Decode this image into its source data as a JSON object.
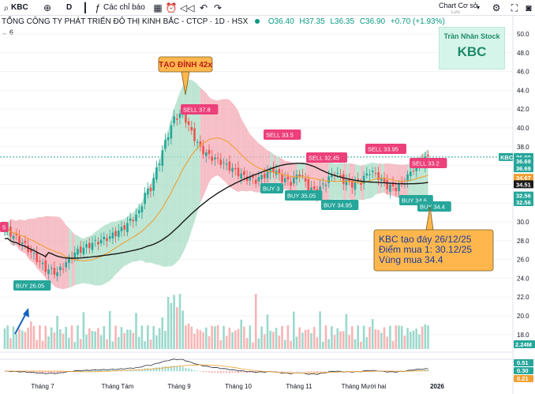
{
  "toolbar": {
    "symbol": "KBC",
    "interval": "D",
    "indicators_label": "Các chỉ báo",
    "layout_name": "Chart Cơ sở",
    "layout_status": "Lưu"
  },
  "legend": {
    "title": "TỔNG CÔNG TY PHÁT TRIỂN ĐÔ THỊ KINH BẮC - CTCP · 1D · HSX",
    "open": "O36.40",
    "high": "H37.35",
    "low": "L36.35",
    "close": "C36.90",
    "change": "+0.70 (+1.93%)",
    "sub_count": "6"
  },
  "watermark": {
    "author": "Trần Nhân Stock",
    "ticker": "KBC"
  },
  "colors": {
    "up": "#26a69a",
    "down": "#ef5350",
    "ma_fast": "#f0a030",
    "ma_slow": "#1a1a1a",
    "band_green": "#a8dcc4",
    "band_red": "#f3a9b4",
    "sell": "#ec407a",
    "buy": "#26a69a",
    "callout": "#ffb74d"
  },
  "chart_data": {
    "type": "candlestick",
    "title": "TỔNG CÔNG TY PHÁT TRIỂN ĐÔ THỊ KINH BẮC - CTCP · 1D · HSX",
    "price_axis": {
      "ticks": [
        18,
        20,
        22,
        24,
        26,
        28,
        30,
        32,
        34,
        36,
        38,
        40,
        42,
        44,
        46,
        48,
        50
      ],
      "range": [
        16.6,
        51.0
      ]
    },
    "time_axis": [
      "Tháng 7",
      "Tháng Tám",
      "Tháng 9",
      "Tháng 10",
      "Tháng 11",
      "Tháng Mười hai",
      "2026"
    ],
    "price_labels": [
      {
        "label": "KBC",
        "value": 36.9,
        "kind": "symbol"
      },
      {
        "label": "36.90",
        "value": 36.9,
        "kind": "last"
      },
      {
        "label": "36.69",
        "value": 36.45,
        "kind": "up"
      },
      {
        "label": "36.69",
        "value": 35.7,
        "kind": "up"
      },
      {
        "label": "34.67",
        "value": 34.7,
        "kind": "ma_fast"
      },
      {
        "label": "34.51",
        "value": 34.0,
        "kind": "ma_slow"
      },
      {
        "label": "32.56",
        "value": 32.8,
        "kind": "up"
      },
      {
        "label": "32.56",
        "value": 32.1,
        "kind": "up"
      }
    ],
    "volume_label": "2.24M",
    "macd_labels": [
      {
        "label": "0.51",
        "kind": "up"
      },
      {
        "label": "0.30",
        "kind": "up"
      },
      {
        "label": "0.21",
        "kind": "ma_fast"
      }
    ],
    "signals": [
      {
        "type": "BUY",
        "price": 26.05,
        "label": "BUY 26.05"
      },
      {
        "type": "SELL",
        "price": 37.8,
        "label": "SELL 37.8"
      },
      {
        "type": "SELL",
        "price": 33.5,
        "label": "SELL 33.5"
      },
      {
        "type": "BUY",
        "price": 35.05,
        "label": "BUY 35.05"
      },
      {
        "type": "BUY",
        "price": null,
        "label": "BUY 3"
      },
      {
        "type": "SELL",
        "price": 32.45,
        "label": "SELL 32.45"
      },
      {
        "type": "BUY",
        "price": 34.95,
        "label": "BUY 34.95"
      },
      {
        "type": "SELL",
        "price": 33.95,
        "label": "SELL 33.95"
      },
      {
        "type": "SELL",
        "price": 33.2,
        "label": "SELL 33.2"
      },
      {
        "type": "BUY",
        "price": 34.6,
        "label": "BUY 34.6"
      },
      {
        "type": "BUY",
        "price": 34.4,
        "label": "BUY 34.4"
      },
      {
        "type": "SELL",
        "price": null,
        "label": "5"
      }
    ],
    "annotations": [
      {
        "text": "TẠO ĐỈNH 42x"
      },
      {
        "lines": [
          "KBC tạo đáy 26/12/25",
          "Điểm mua 1:  30.12/25",
          "Vùng mua 34.4"
        ]
      }
    ]
  }
}
